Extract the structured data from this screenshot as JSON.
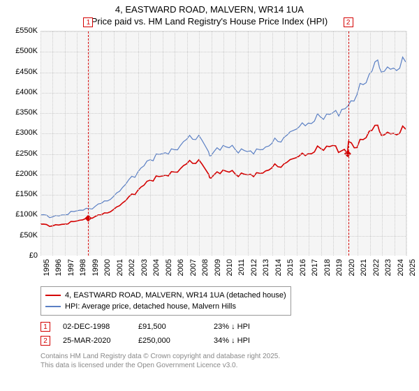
{
  "title": {
    "line1": "4, EASTWARD ROAD, MALVERN, WR14 1UA",
    "line2": "Price paid vs. HM Land Registry's House Price Index (HPI)"
  },
  "chart": {
    "type": "line",
    "background_color": "#f5f5f5",
    "grid_color": "#cccccc",
    "ylim": [
      0,
      550000
    ],
    "ytick_step": 50000,
    "y_labels": [
      "£0",
      "£50K",
      "£100K",
      "£150K",
      "£200K",
      "£250K",
      "£300K",
      "£350K",
      "£400K",
      "£450K",
      "£500K",
      "£550K"
    ],
    "xlim": [
      1995,
      2025
    ],
    "x_labels": [
      "1995",
      "1996",
      "1997",
      "1998",
      "1999",
      "2000",
      "2001",
      "2002",
      "2003",
      "2004",
      "2005",
      "2006",
      "2007",
      "2008",
      "2009",
      "2010",
      "2011",
      "2012",
      "2013",
      "2014",
      "2015",
      "2016",
      "2017",
      "2018",
      "2019",
      "2020",
      "2021",
      "2022",
      "2023",
      "2024",
      "2025"
    ],
    "label_fontsize": 11,
    "series": [
      {
        "name": "hpi",
        "color": "#5a7fc4",
        "width": 1.2,
        "points": [
          [
            1995,
            100000
          ],
          [
            1996,
            95000
          ],
          [
            1997,
            100000
          ],
          [
            1998,
            110000
          ],
          [
            1999,
            115000
          ],
          [
            2000,
            128000
          ],
          [
            2001,
            145000
          ],
          [
            2002,
            175000
          ],
          [
            2003,
            205000
          ],
          [
            2004,
            235000
          ],
          [
            2005,
            250000
          ],
          [
            2006,
            260000
          ],
          [
            2007,
            285000
          ],
          [
            2008,
            295000
          ],
          [
            2008.8,
            255000
          ],
          [
            2009,
            245000
          ],
          [
            2010,
            270000
          ],
          [
            2011,
            260000
          ],
          [
            2012,
            255000
          ],
          [
            2013,
            260000
          ],
          [
            2014,
            275000
          ],
          [
            2015,
            290000
          ],
          [
            2016,
            310000
          ],
          [
            2017,
            325000
          ],
          [
            2018,
            340000
          ],
          [
            2019,
            350000
          ],
          [
            2020,
            360000
          ],
          [
            2021,
            395000
          ],
          [
            2022,
            445000
          ],
          [
            2022.7,
            480000
          ],
          [
            2023,
            450000
          ],
          [
            2024,
            460000
          ],
          [
            2025,
            475000
          ]
        ]
      },
      {
        "name": "price-paid",
        "color": "#d40000",
        "width": 1.6,
        "points": [
          [
            1995,
            77000
          ],
          [
            1996,
            73000
          ],
          [
            1997,
            77000
          ],
          [
            1998,
            85000
          ],
          [
            1998.9,
            91500
          ],
          [
            1999,
            93000
          ],
          [
            2000,
            100000
          ],
          [
            2001,
            113000
          ],
          [
            2002,
            135000
          ],
          [
            2003,
            160000
          ],
          [
            2004,
            185000
          ],
          [
            2005,
            195000
          ],
          [
            2006,
            205000
          ],
          [
            2007,
            225000
          ],
          [
            2008,
            235000
          ],
          [
            2008.8,
            200000
          ],
          [
            2009,
            190000
          ],
          [
            2010,
            210000
          ],
          [
            2011,
            200000
          ],
          [
            2012,
            198000
          ],
          [
            2013,
            202000
          ],
          [
            2014,
            215000
          ],
          [
            2015,
            225000
          ],
          [
            2016,
            240000
          ],
          [
            2017,
            250000
          ],
          [
            2018,
            263000
          ],
          [
            2019,
            270000
          ],
          [
            2020.2,
            250000
          ],
          [
            2020.3,
            280000
          ],
          [
            2021,
            265000
          ],
          [
            2022,
            305000
          ],
          [
            2022.7,
            320000
          ],
          [
            2023,
            295000
          ],
          [
            2024,
            300000
          ],
          [
            2025,
            310000
          ]
        ]
      }
    ],
    "markers": [
      {
        "id": "1",
        "x": 1998.92,
        "diamond_y": 91500
      },
      {
        "id": "2",
        "x": 2020.23,
        "diamond_y": 250000
      }
    ]
  },
  "legend": {
    "items": [
      {
        "color": "#d40000",
        "label": "4, EASTWARD ROAD, MALVERN, WR14 1UA (detached house)"
      },
      {
        "color": "#5a7fc4",
        "label": "HPI: Average price, detached house, Malvern Hills"
      }
    ]
  },
  "annotations": [
    {
      "id": "1",
      "date": "02-DEC-1998",
      "price": "£91,500",
      "delta": "23% ↓ HPI"
    },
    {
      "id": "2",
      "date": "25-MAR-2020",
      "price": "£250,000",
      "delta": "34% ↓ HPI"
    }
  ],
  "footer": {
    "line1": "Contains HM Land Registry data © Crown copyright and database right 2025.",
    "line2": "This data is licensed under the Open Government Licence v3.0."
  }
}
